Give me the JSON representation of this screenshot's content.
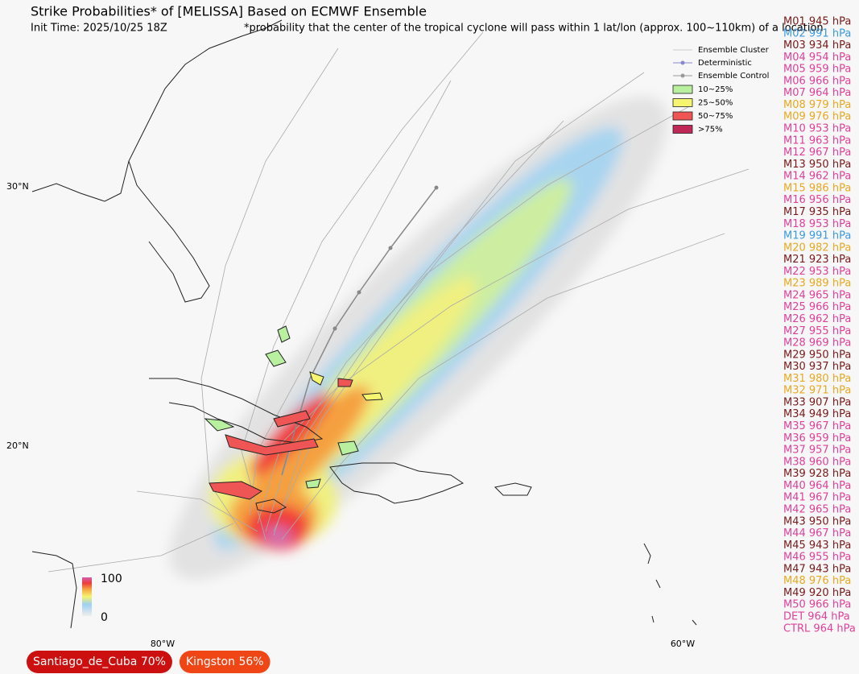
{
  "header": {
    "title": "Strike Probabilities* of [MELISSA] Based on ECMWF Ensemble",
    "init_time": "Init Time: 2025/10/25 18Z",
    "note": "*probability that the center of the tropical cyclone will pass within 1 lat/lon (approx. 100~110km) of a location"
  },
  "legend": {
    "cluster": "Ensemble Cluster",
    "deterministic": "Deterministic",
    "control": "Ensemble Control",
    "bins": [
      {
        "label": "10~25%",
        "color": "#b8f0a0"
      },
      {
        "label": "25~50%",
        "color": "#f5f570"
      },
      {
        "label": "50~75%",
        "color": "#f05555"
      },
      {
        "label": ">75%",
        "color": "#c02858"
      }
    ]
  },
  "axes": {
    "lat": [
      "30°N",
      "20°N"
    ],
    "lon": [
      "80°W",
      "60°W"
    ]
  },
  "colorbar": {
    "top": "100",
    "bottom": "0"
  },
  "members": [
    {
      "label": "M01 945 hPa",
      "color": "#7a1a1a"
    },
    {
      "label": "M02 991 hPa",
      "color": "#3a9ae0"
    },
    {
      "label": "M03 934 hPa",
      "color": "#7a1a1a"
    },
    {
      "label": "M04 954 hPa",
      "color": "#e0409a"
    },
    {
      "label": "M05 959 hPa",
      "color": "#e0409a"
    },
    {
      "label": "M06 966 hPa",
      "color": "#e0409a"
    },
    {
      "label": "M07 964 hPa",
      "color": "#e0409a"
    },
    {
      "label": "M08 979 hPa",
      "color": "#e8a820"
    },
    {
      "label": "M09 976 hPa",
      "color": "#e8a820"
    },
    {
      "label": "M10 953 hPa",
      "color": "#e0409a"
    },
    {
      "label": "M11 963 hPa",
      "color": "#e0409a"
    },
    {
      "label": "M12 967 hPa",
      "color": "#e0409a"
    },
    {
      "label": "M13 950 hPa",
      "color": "#7a1a1a"
    },
    {
      "label": "M14 962 hPa",
      "color": "#e0409a"
    },
    {
      "label": "M15 986 hPa",
      "color": "#e8a820"
    },
    {
      "label": "M16 956 hPa",
      "color": "#e0409a"
    },
    {
      "label": "M17 935 hPa",
      "color": "#7a1a1a"
    },
    {
      "label": "M18 953 hPa",
      "color": "#e0409a"
    },
    {
      "label": "M19 991 hPa",
      "color": "#3a9ae0"
    },
    {
      "label": "M20 982 hPa",
      "color": "#e8a820"
    },
    {
      "label": "M21 923 hPa",
      "color": "#7a1a1a"
    },
    {
      "label": "M22 953 hPa",
      "color": "#e0409a"
    },
    {
      "label": "M23 989 hPa",
      "color": "#e8a820"
    },
    {
      "label": "M24 965 hPa",
      "color": "#e0409a"
    },
    {
      "label": "M25 966 hPa",
      "color": "#e0409a"
    },
    {
      "label": "M26 962 hPa",
      "color": "#e0409a"
    },
    {
      "label": "M27 955 hPa",
      "color": "#e0409a"
    },
    {
      "label": "M28 969 hPa",
      "color": "#e0409a"
    },
    {
      "label": "M29 950 hPa",
      "color": "#7a1a1a"
    },
    {
      "label": "M30 937 hPa",
      "color": "#7a1a1a"
    },
    {
      "label": "M31 980 hPa",
      "color": "#e8a820"
    },
    {
      "label": "M32 971 hPa",
      "color": "#e8a820"
    },
    {
      "label": "M33 907 hPa",
      "color": "#7a1a1a"
    },
    {
      "label": "M34 949 hPa",
      "color": "#7a1a1a"
    },
    {
      "label": "M35 967 hPa",
      "color": "#e0409a"
    },
    {
      "label": "M36 959 hPa",
      "color": "#e0409a"
    },
    {
      "label": "M37 957 hPa",
      "color": "#e0409a"
    },
    {
      "label": "M38 960 hPa",
      "color": "#e0409a"
    },
    {
      "label": "M39 928 hPa",
      "color": "#7a1a1a"
    },
    {
      "label": "M40 964 hPa",
      "color": "#e0409a"
    },
    {
      "label": "M41 967 hPa",
      "color": "#e0409a"
    },
    {
      "label": "M42 965 hPa",
      "color": "#e0409a"
    },
    {
      "label": "M43 950 hPa",
      "color": "#7a1a1a"
    },
    {
      "label": "M44 967 hPa",
      "color": "#e0409a"
    },
    {
      "label": "M45 943 hPa",
      "color": "#7a1a1a"
    },
    {
      "label": "M46 955 hPa",
      "color": "#e0409a"
    },
    {
      "label": "M47 943 hPa",
      "color": "#7a1a1a"
    },
    {
      "label": "M48 976 hPa",
      "color": "#e8a820"
    },
    {
      "label": "M49 920 hPa",
      "color": "#7a1a1a"
    },
    {
      "label": "M50 966 hPa",
      "color": "#e0409a"
    },
    {
      "label": "DET 964 hPa",
      "color": "#e0409a"
    },
    {
      "label": "CTRL 964 hPa",
      "color": "#e0409a"
    }
  ],
  "badges": [
    {
      "text": "Santiago_de_Cuba  70%",
      "color": "#cc1010"
    },
    {
      "text": "Kingston  56%",
      "color": "#f04515"
    }
  ]
}
